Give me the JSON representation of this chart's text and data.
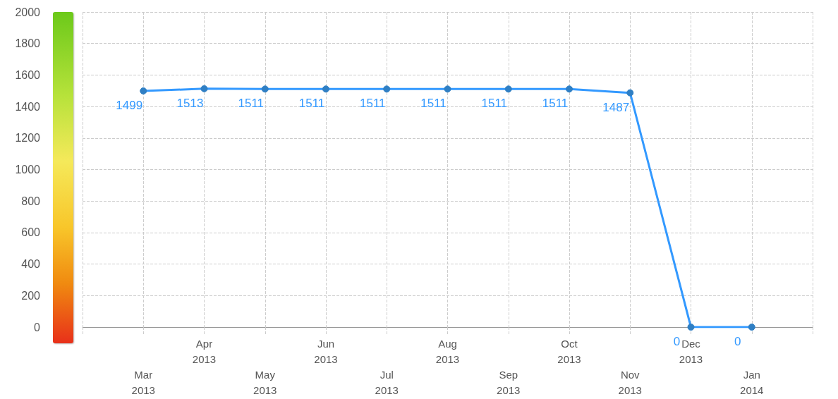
{
  "chart_data": {
    "type": "line",
    "categories": [
      null,
      "Mar 2013",
      "Apr 2013",
      "May 2013",
      "Jun 2013",
      "Jul 2013",
      "Aug 2013",
      "Sep 2013",
      "Oct 2013",
      "Nov 2013",
      "Dec 2013",
      "Jan 2014",
      null
    ],
    "series": [
      {
        "color": "#3399ff",
        "values": [
          null,
          1499,
          1513,
          1511,
          1511,
          1511,
          1511,
          1511,
          1511,
          1487,
          0,
          0,
          null
        ]
      }
    ],
    "ylim": [
      0,
      2000
    ],
    "yticks": [
      0,
      200,
      400,
      600,
      800,
      1000,
      1200,
      1400,
      1600,
      1800,
      2000
    ],
    "grid": true,
    "marker": "circle",
    "line_style": "solid",
    "data_labels": true
  }
}
